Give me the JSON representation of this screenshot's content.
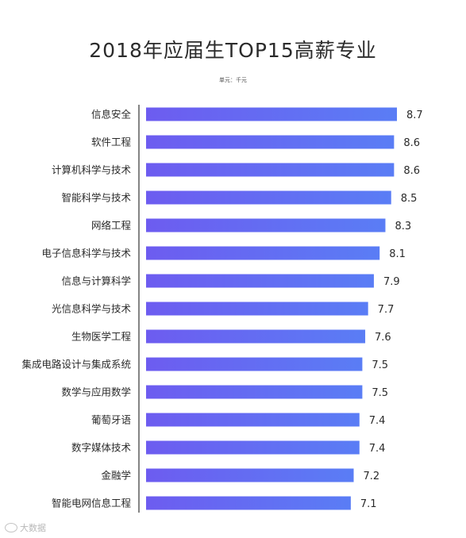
{
  "chart_data": {
    "type": "bar",
    "orientation": "horizontal",
    "title": "2018年应届生TOP15高薪专业",
    "subtitle": "单元：千元",
    "categories": [
      "信息安全",
      "软件工程",
      "计算机科学与技术",
      "智能科学与技术",
      "网络工程",
      "电子信息科学与技术",
      "信息与计算科学",
      "光信息科学与技术",
      "生物医学工程",
      "集成电路设计与集成系统",
      "数学与应用数学",
      "葡萄牙语",
      "数字媒体技术",
      "金融学",
      "智能电网信息工程"
    ],
    "values": [
      8.7,
      8.6,
      8.6,
      8.5,
      8.3,
      8.1,
      7.9,
      7.7,
      7.6,
      7.5,
      7.5,
      7.4,
      7.4,
      7.2,
      7.1
    ],
    "xlim": [
      0,
      8.7
    ],
    "grid": false,
    "legend": "none",
    "bar_colors": [
      "#6d5cf0",
      "#5a7df5"
    ],
    "axis_color": "#333333"
  },
  "watermark": {
    "text": "大数据"
  }
}
